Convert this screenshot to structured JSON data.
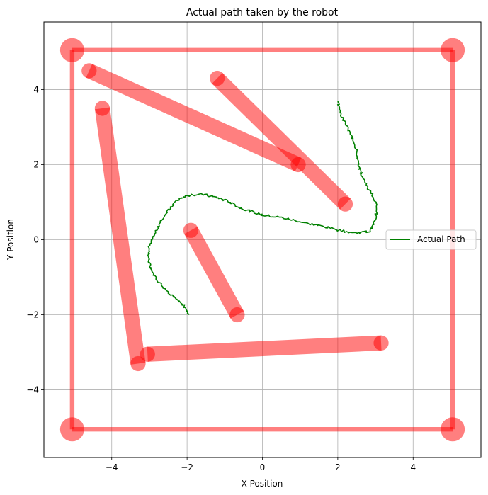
{
  "chart_data": {
    "type": "line",
    "title": "Actual path taken by the robot",
    "xlabel": "X Position",
    "ylabel": "Y Position",
    "xlim": [
      -5.8,
      5.8
    ],
    "ylim": [
      -5.8,
      5.8
    ],
    "xticks": [
      -4,
      -2,
      0,
      2,
      4
    ],
    "yticks": [
      -4,
      -2,
      0,
      2,
      4
    ],
    "xtick_labels": [
      "−4",
      "−2",
      "0",
      "2",
      "4"
    ],
    "ytick_labels": [
      "−4",
      "−2",
      "0",
      "2",
      "4"
    ],
    "grid": true,
    "legend": {
      "location": "center-right",
      "entries": [
        "Actual Path"
      ]
    },
    "obstacle_color": "#ff0000",
    "path_color": "#008000",
    "boundary": {
      "corners": [
        [
          -5.05,
          5.05
        ],
        [
          5.05,
          5.05
        ],
        [
          5.05,
          -5.05
        ],
        [
          -5.05,
          -5.05
        ]
      ]
    },
    "obstacles": [
      {
        "start": [
          -4.6,
          4.5
        ],
        "end": [
          0.95,
          2.0
        ]
      },
      {
        "start": [
          -1.2,
          4.3
        ],
        "end": [
          2.2,
          0.95
        ]
      },
      {
        "start": [
          -4.25,
          3.5
        ],
        "end": [
          -3.3,
          -3.3
        ]
      },
      {
        "start": [
          -3.05,
          -3.05
        ],
        "end": [
          3.15,
          -2.75
        ]
      },
      {
        "start": [
          -1.9,
          0.25
        ],
        "end": [
          -0.67,
          -2.0
        ]
      }
    ],
    "series": [
      {
        "name": "Actual Path",
        "points": [
          [
            -1.95,
            -2.0
          ],
          [
            -2.05,
            -1.8
          ],
          [
            -2.25,
            -1.6
          ],
          [
            -2.5,
            -1.4
          ],
          [
            -2.75,
            -1.15
          ],
          [
            -2.95,
            -0.8
          ],
          [
            -3.02,
            -0.5
          ],
          [
            -3.0,
            -0.2
          ],
          [
            -2.85,
            0.15
          ],
          [
            -2.7,
            0.5
          ],
          [
            -2.45,
            0.85
          ],
          [
            -2.2,
            1.1
          ],
          [
            -1.9,
            1.2
          ],
          [
            -1.55,
            1.2
          ],
          [
            -1.2,
            1.12
          ],
          [
            -0.9,
            1.02
          ],
          [
            -0.6,
            0.85
          ],
          [
            -0.3,
            0.75
          ],
          [
            0.05,
            0.65
          ],
          [
            0.45,
            0.6
          ],
          [
            0.85,
            0.52
          ],
          [
            1.25,
            0.42
          ],
          [
            1.65,
            0.35
          ],
          [
            2.05,
            0.25
          ],
          [
            2.45,
            0.18
          ],
          [
            2.85,
            0.22
          ],
          [
            3.0,
            0.55
          ],
          [
            3.05,
            0.95
          ],
          [
            2.85,
            1.3
          ],
          [
            2.65,
            1.65
          ],
          [
            2.55,
            2.0
          ],
          [
            2.5,
            2.4
          ],
          [
            2.35,
            2.8
          ],
          [
            2.2,
            3.1
          ],
          [
            2.05,
            3.4
          ],
          [
            2.0,
            3.7
          ]
        ]
      }
    ]
  }
}
